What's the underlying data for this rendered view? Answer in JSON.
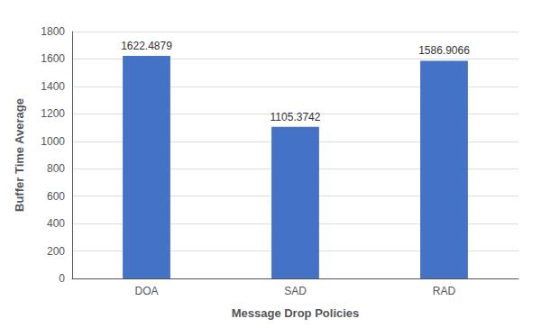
{
  "chart_data": {
    "type": "bar",
    "categories": [
      "DOA",
      "SAD",
      "RAD"
    ],
    "values": [
      1622.4879,
      1105.3742,
      1586.9066
    ],
    "color": "#4472c4",
    "xlabel": "Message Drop Policies",
    "ylabel": "Buffer Time Average",
    "ylim": [
      0,
      1800
    ],
    "yticks": [
      0,
      200,
      400,
      600,
      800,
      1000,
      1200,
      1400,
      1600,
      1800
    ],
    "grid": true,
    "data_labels": true
  }
}
